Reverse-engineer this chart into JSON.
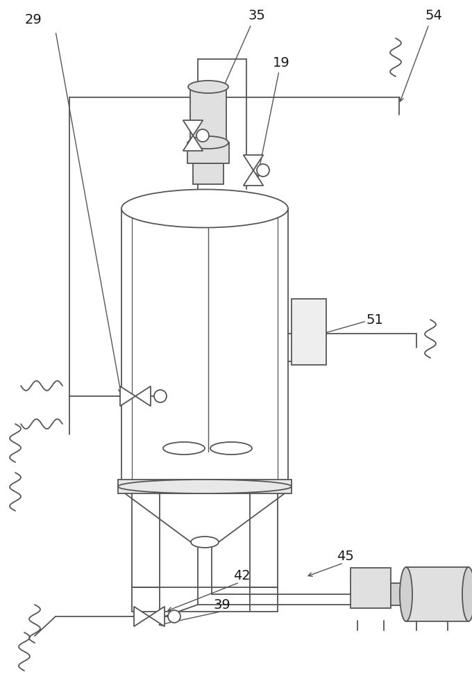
{
  "bg_color": "#ffffff",
  "line_color": "#555555",
  "label_color": "#1a1a1a",
  "figsize": [
    6.8,
    10.0
  ],
  "dpi": 100,
  "lw": 1.3
}
